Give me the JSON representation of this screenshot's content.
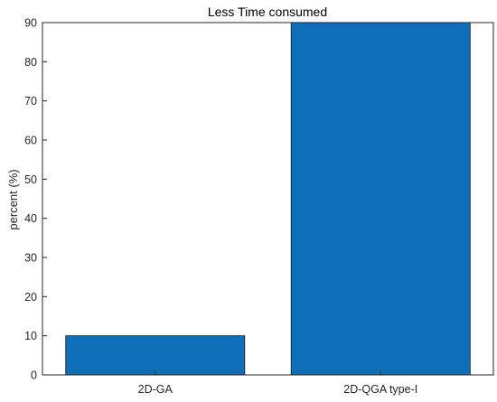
{
  "chart_data": {
    "type": "bar",
    "title": "Less Time consumed",
    "xlabel": "",
    "ylabel": "percent (%)",
    "categories": [
      "2D-GA",
      "2D-QGA type-I"
    ],
    "values": [
      10,
      90
    ],
    "ylim": [
      0,
      90
    ],
    "yticks": [
      0,
      10,
      20,
      30,
      40,
      50,
      60,
      70,
      80,
      90
    ],
    "bar_color": "#0f6fb8",
    "grid": false,
    "legend": "none"
  }
}
